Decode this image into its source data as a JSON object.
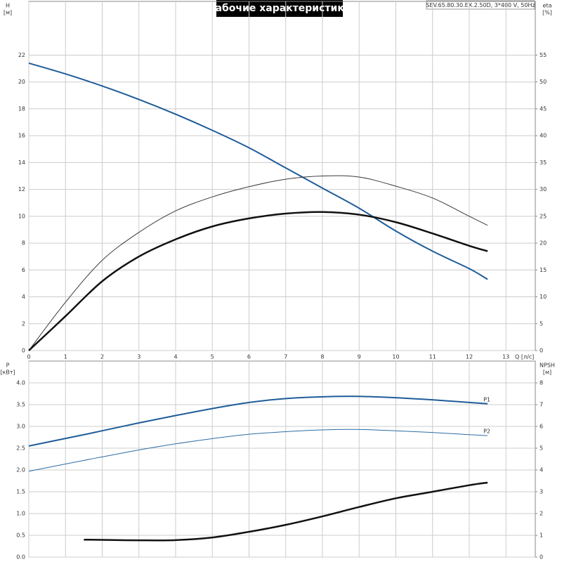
{
  "chart_data": [
    {
      "type": "line",
      "title": "Рабочие характеристики",
      "subtitle": "SEV.65.80.30.EX.2.50D, 3*400 V, 50Hz",
      "ylabel": [
        "H",
        "[м]"
      ],
      "y2label": [
        "eta",
        "[%]"
      ],
      "xlabel": "Q [л/с]",
      "show_xtick_labels": true,
      "x": [
        0,
        1,
        2,
        3,
        4,
        5,
        6,
        7,
        8,
        9,
        10,
        11,
        12,
        12.5
      ],
      "series": [
        {
          "color": "#1f5c99",
          "width": 2,
          "axis": "y",
          "values": [
            21.4,
            20.6,
            19.7,
            18.7,
            17.6,
            16.4,
            15.1,
            13.6,
            12.1,
            10.6,
            8.9,
            7.4,
            6.1,
            5.3
          ]
        },
        {
          "color": "#3a3a3a",
          "width": 1,
          "axis": "y2",
          "values": [
            0,
            9,
            16.8,
            22,
            26,
            28.6,
            30.5,
            31.9,
            32.5,
            32.3,
            30.6,
            28.4,
            25,
            23.3
          ]
        },
        {
          "color": "#111111",
          "width": 2.5,
          "axis": "y2",
          "values": [
            0,
            6.4,
            12.9,
            17.5,
            20.7,
            23.1,
            24.6,
            25.5,
            25.8,
            25.3,
            23.9,
            21.8,
            19.5,
            18.5
          ]
        }
      ],
      "xlim": [
        0,
        13.8
      ],
      "xticks": [
        0,
        1,
        2,
        3,
        4,
        5,
        6,
        7,
        8,
        9,
        10,
        11,
        12,
        13
      ],
      "ylim": [
        0,
        26
      ],
      "yticks": [
        0,
        2,
        4,
        6,
        8,
        10,
        12,
        14,
        16,
        18,
        20,
        22
      ],
      "y2lim": [
        0,
        65
      ],
      "y2ticks": [
        0,
        5,
        10,
        15,
        20,
        25,
        30,
        35,
        40,
        45,
        50,
        55
      ],
      "grid": true
    },
    {
      "type": "line",
      "ylabel": [
        "P",
        "[кВт]"
      ],
      "y2label": [
        "NPSH",
        "[м]"
      ],
      "show_xtick_labels": false,
      "x": [
        0,
        1.5,
        2,
        3,
        4,
        5,
        6,
        7,
        8,
        9,
        10,
        11,
        12,
        12.5
      ],
      "series": [
        {
          "name": "P1",
          "color": "#1f5c99",
          "width": 2,
          "axis": "y",
          "values": [
            2.55,
            2.81,
            2.9,
            3.08,
            3.25,
            3.41,
            3.55,
            3.64,
            3.68,
            3.69,
            3.66,
            3.61,
            3.55,
            3.52
          ]
        },
        {
          "name": "P2",
          "color": "#2e6da4",
          "width": 1,
          "axis": "y",
          "values": [
            1.97,
            2.22,
            2.3,
            2.46,
            2.6,
            2.72,
            2.82,
            2.88,
            2.92,
            2.93,
            2.9,
            2.86,
            2.81,
            2.79
          ]
        },
        {
          "color": "#111111",
          "width": 2.5,
          "axis": "y2",
          "values": [
            null,
            0.8,
            0.79,
            0.77,
            0.78,
            0.9,
            1.16,
            1.48,
            1.87,
            2.3,
            2.7,
            3.0,
            3.3,
            3.42
          ]
        }
      ],
      "xlim": [
        0,
        13.8
      ],
      "xticks": [
        0,
        1,
        2,
        3,
        4,
        5,
        6,
        7,
        8,
        9,
        10,
        11,
        12,
        13
      ],
      "ylim": [
        0,
        4.5
      ],
      "yticks": [
        {
          "value": 0,
          "label": "0.0"
        },
        0.5,
        {
          "value": 1,
          "label": "1.0"
        },
        1.5,
        {
          "value": 2,
          "label": "2.0"
        },
        2.5,
        {
          "value": 3,
          "label": "3.0"
        },
        3.5,
        {
          "value": 4,
          "label": "4.0"
        }
      ],
      "y2lim": [
        0,
        9
      ],
      "y2ticks": [
        0,
        1,
        2,
        3,
        4,
        5,
        6,
        7,
        8
      ],
      "grid": true
    }
  ]
}
